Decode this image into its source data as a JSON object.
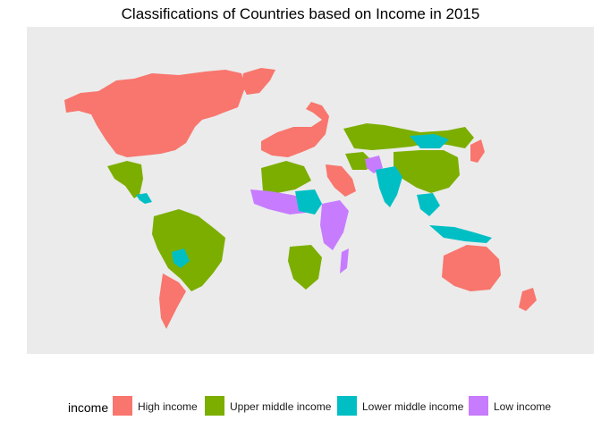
{
  "title": "Classifications of Countries based on Income in 2015",
  "legend": {
    "title": "income",
    "items": [
      {
        "label": "High income",
        "color": "#F8766D"
      },
      {
        "label": "Upper middle income",
        "color": "#7CAE00"
      },
      {
        "label": "Lower middle income",
        "color": "#00BFC4"
      },
      {
        "label": "Low income",
        "color": "#C77CFF"
      }
    ]
  },
  "map": {
    "background": "#EBEBEB",
    "regions": [
      {
        "name": "North America",
        "income": "High income"
      },
      {
        "name": "Greenland",
        "income": "High income"
      },
      {
        "name": "Mexico",
        "income": "Upper middle income"
      },
      {
        "name": "Central America",
        "income": "Lower middle income"
      },
      {
        "name": "Brazil",
        "income": "Upper middle income"
      },
      {
        "name": "Bolivia",
        "income": "Lower middle income"
      },
      {
        "name": "Chile",
        "income": "High income"
      },
      {
        "name": "Argentina",
        "income": "High income"
      },
      {
        "name": "Europe",
        "income": "High income"
      },
      {
        "name": "Russia",
        "income": "Upper middle income"
      },
      {
        "name": "China",
        "income": "Upper middle income"
      },
      {
        "name": "Mongolia",
        "income": "Lower middle income"
      },
      {
        "name": "India",
        "income": "Lower middle income"
      },
      {
        "name": "Afghanistan",
        "income": "Low income"
      },
      {
        "name": "Saudi Arabia",
        "income": "High income"
      },
      {
        "name": "North Africa",
        "income": "Upper middle income"
      },
      {
        "name": "West Africa",
        "income": "Low income"
      },
      {
        "name": "Southern Africa",
        "income": "Upper middle income"
      },
      {
        "name": "East Africa",
        "income": "Low income"
      },
      {
        "name": "Madagascar",
        "income": "Low income"
      },
      {
        "name": "Indonesia",
        "income": "Lower middle income"
      },
      {
        "name": "Australia",
        "income": "High income"
      },
      {
        "name": "New Zealand",
        "income": "High income"
      },
      {
        "name": "Japan",
        "income": "High income"
      }
    ]
  }
}
